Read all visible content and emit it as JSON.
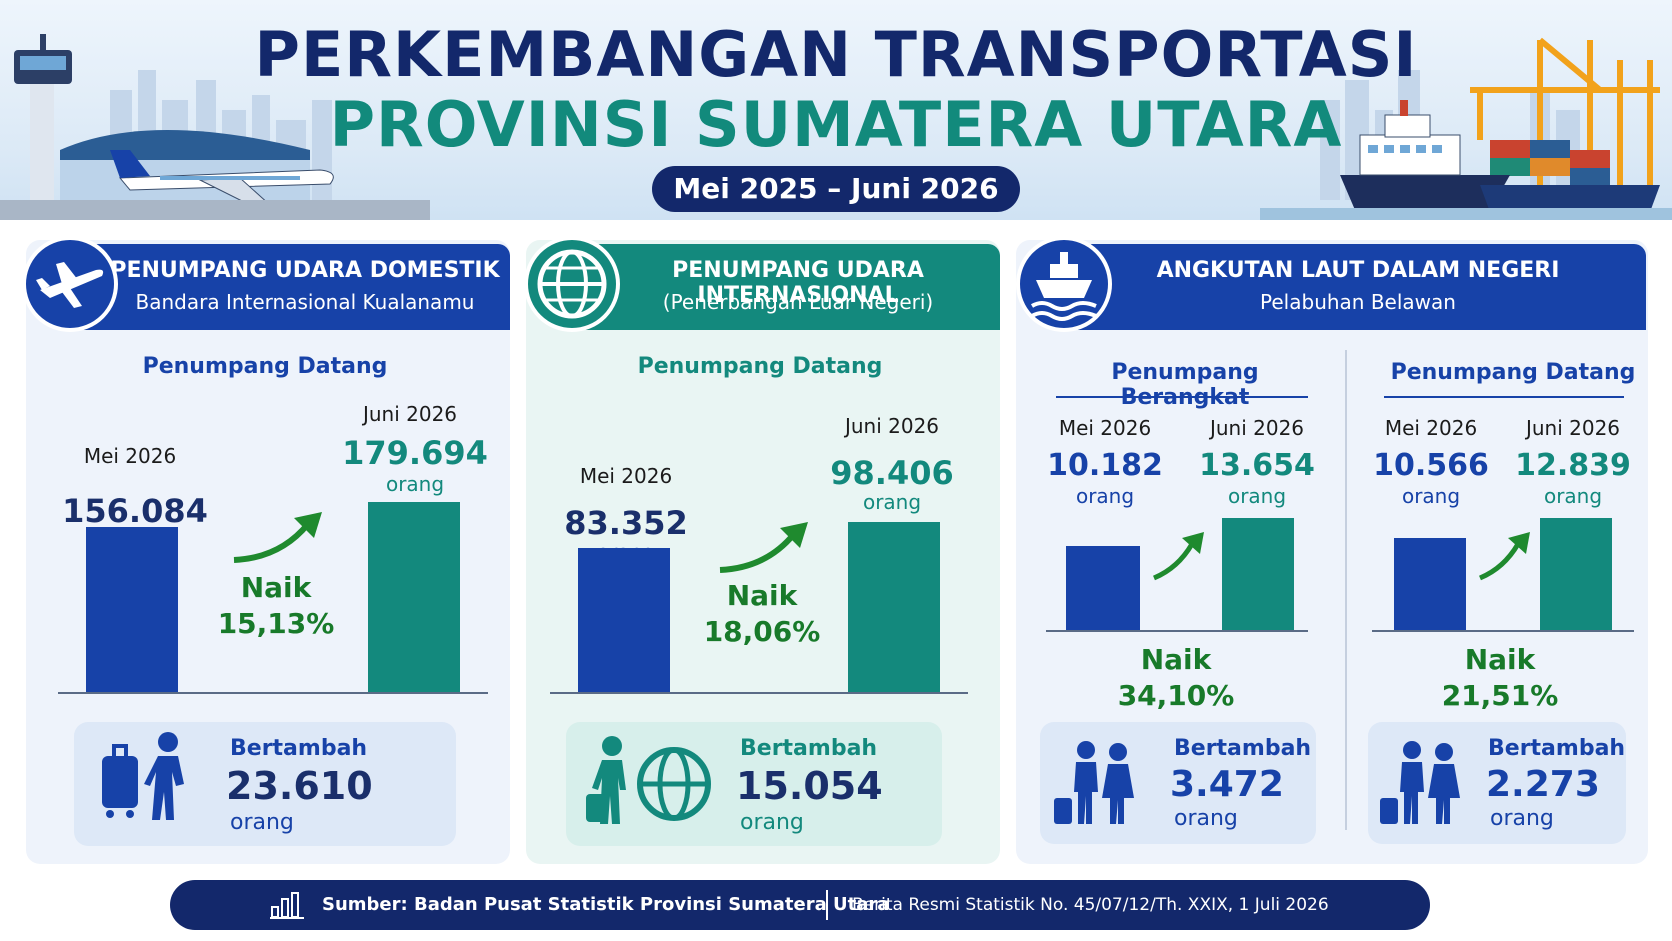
{
  "header": {
    "title_line1": "PERKEMBANGAN TRANSPORTASI",
    "title_line2": "PROVINSI SUMATERA UTARA",
    "period": "Mei 2025 – Juni 2026"
  },
  "colors": {
    "navy": "#13286b",
    "blue": "#1742a8",
    "teal": "#13897d",
    "green_text": "#187a2a"
  },
  "domestic": {
    "icon": "airplane-icon",
    "title": "PENUMPANG UDARA DOMESTIK",
    "subtitle": "Bandara Internasional Kualanamu",
    "metric": "Penumpang Datang",
    "month_a": "Mei 2026",
    "value_a": "156.084",
    "unit_a": "orang",
    "month_b": "Juni 2026",
    "value_b": "179.694",
    "unit_b": "orang",
    "change_label": "Naik",
    "change_pct": "15,13%",
    "increase_label": "Bertambah",
    "increase_value": "23.610",
    "increase_unit": "orang",
    "bar_a": 156084,
    "bar_b": 179694
  },
  "international": {
    "icon": "globe-icon",
    "title": "PENUMPANG UDARA INTERNASIONAL",
    "subtitle": "(Penerbangan Luar Negeri)",
    "metric": "Penumpang Datang",
    "month_a": "Mei 2026",
    "value_a": "83.352",
    "unit_a": "orang",
    "month_b": "Juni 2026",
    "value_b": "98.406",
    "unit_b": "orang",
    "change_label": "Naik",
    "change_pct": "18,06%",
    "increase_label": "Bertambah",
    "increase_value": "15.054",
    "increase_unit": "orang",
    "bar_a": 83352,
    "bar_b": 98406
  },
  "sea": {
    "icon": "ship-icon",
    "title": "ANGKUTAN LAUT DALAM NEGERI",
    "subtitle": "Pelabuhan Belawan",
    "departing": {
      "metric": "Penumpang Berangkat",
      "month_a": "Mei 2026",
      "value_a": "10.182",
      "unit_a": "orang",
      "month_b": "Juni 2026",
      "value_b": "13.654",
      "unit_b": "orang",
      "change_label": "Naik",
      "change_pct": "34,10%",
      "increase_label": "Bertambah",
      "increase_value": "3.472",
      "increase_unit": "orang",
      "bar_a": 10182,
      "bar_b": 13654
    },
    "arriving": {
      "metric": "Penumpang Datang",
      "month_a": "Mei 2026",
      "value_a": "10.566",
      "unit_a": "orang",
      "month_b": "Juni 2026",
      "value_b": "12.839",
      "unit_b": "orang",
      "change_label": "Naik",
      "change_pct": "21,51%",
      "increase_label": "Bertambah",
      "increase_value": "2.273",
      "increase_unit": "orang",
      "bar_a": 10566,
      "bar_b": 12839
    }
  },
  "footer": {
    "source": "Sumber: Badan Pusat Statistik Provinsi Sumatera Utara",
    "reference": "Berita Resmi Statistik No. 45/07/12/Th. XXIX, 1 Juli 2026"
  }
}
